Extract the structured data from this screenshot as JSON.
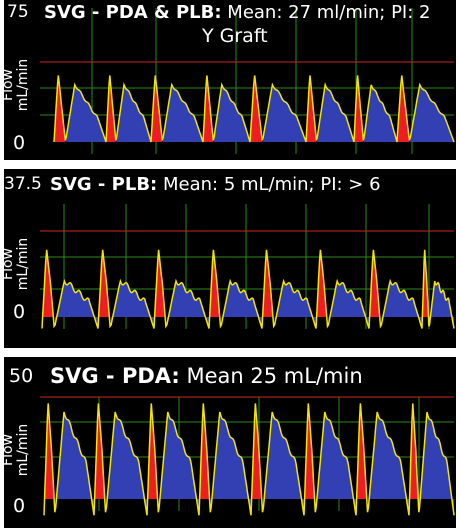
{
  "colors": {
    "background": "#000000",
    "grid": "#2a8a1a",
    "maxline": "#c8281e",
    "systolic": "#ee1c24",
    "diastolic": "#3340b3",
    "trace": "#f2e600",
    "text": "#ffffff"
  },
  "panels": [
    {
      "y_max_label": "75",
      "y_zero_label": "0",
      "y_label_line1": "Flow",
      "y_label_line2": "mL/min",
      "title_bold": "SVG - PDA & PLB:",
      "title_rest": " Mean: 27 ml/min; PI: 2",
      "subtitle": "Y Graft"
    },
    {
      "y_max_label": "37.5",
      "y_zero_label": "0",
      "y_label_line1": "Flow",
      "y_label_line2": "mL/min",
      "title_bold": "SVG - PLB:",
      "title_rest": " Mean: 5 mL/min; PI: > 6",
      "subtitle": ""
    },
    {
      "y_max_label": "50",
      "y_zero_label": "0",
      "y_label_line1": "Flow",
      "y_label_line2": "mL/min",
      "title_bold": "SVG - PDA:",
      "title_rest": " Mean 25 mL/min",
      "subtitle": ""
    }
  ],
  "chart_data": [
    {
      "type": "area",
      "title": "SVG - PDA & PLB: Mean: 27 ml/min; PI: 2",
      "subtitle": "Y Graft",
      "ylabel": "Flow mL/min",
      "ylim": [
        0,
        75
      ],
      "mean": 27,
      "pi": "2",
      "beats": 8,
      "systolic_peak": 64,
      "diastolic_peak": 54,
      "trough": 0,
      "grid": true
    },
    {
      "type": "area",
      "title": "SVG - PLB: Mean: 5 mL/min; PI: > 6",
      "ylabel": "Flow mL/min",
      "ylim": [
        0,
        37.5
      ],
      "mean": 5,
      "pi": "> 6",
      "beats": 8,
      "systolic_peak": 30,
      "diastolic_peak": 16,
      "trough": -5,
      "grid": true
    },
    {
      "type": "area",
      "title": "SVG - PDA: Mean 25 mL/min",
      "ylabel": "Flow mL/min",
      "ylim": [
        0,
        50
      ],
      "mean": 25,
      "beats": 8,
      "systolic_peak": 48,
      "diastolic_peak": 43,
      "trough": -8,
      "grid": true
    }
  ]
}
